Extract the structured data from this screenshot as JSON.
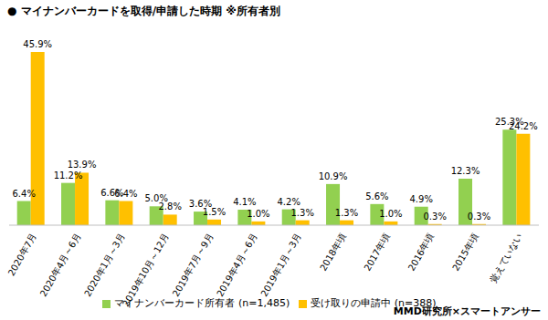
{
  "chart_data": {
    "type": "bar",
    "title": "● マイナンバーカードを取得/申請した時期 ※所有者別",
    "annotation": "MMD研究所×スマートアンサー",
    "categories": [
      "2020年7月",
      "2020年4月～6月",
      "2020年1月～3月",
      "2019年10月～12月",
      "2019年7月～9月",
      "2019年4月～6月",
      "2019年1月～3月",
      "2018年頃",
      "2017年頃",
      "2016年頃",
      "2015年頃",
      "覚えていない"
    ],
    "series": [
      {
        "name": "マイナンバーカード所有者 (n=1,485)",
        "color": "#92d050",
        "values": [
          6.4,
          11.2,
          6.6,
          5.0,
          3.6,
          4.1,
          4.2,
          10.9,
          5.6,
          4.9,
          12.3,
          25.3
        ],
        "value_labels": [
          "6.4%",
          "11.2%",
          "6.6%",
          "5.0%",
          "3.6%",
          "4.1%",
          "4.2%",
          "10.9%",
          "5.6%",
          "4.9%",
          "12.3%",
          "25.3%"
        ]
      },
      {
        "name": "受け取りの申請中 (n=388)",
        "color": "#ffc000",
        "values": [
          45.9,
          13.9,
          6.4,
          2.8,
          1.5,
          1.0,
          1.3,
          1.3,
          1.0,
          0.3,
          0.3,
          24.2
        ],
        "value_labels": [
          "45.9%",
          "13.9%",
          "6.4%",
          "2.8%",
          "1.5%",
          "1.0%",
          "1.3%",
          "1.3%",
          "1.0%",
          "0.3%",
          "0.3%",
          "24.2%"
        ]
      }
    ],
    "ylim": [
      0,
      50
    ],
    "data_labels": true,
    "grid": false,
    "legend": "bottom",
    "tick_labels": "x"
  }
}
